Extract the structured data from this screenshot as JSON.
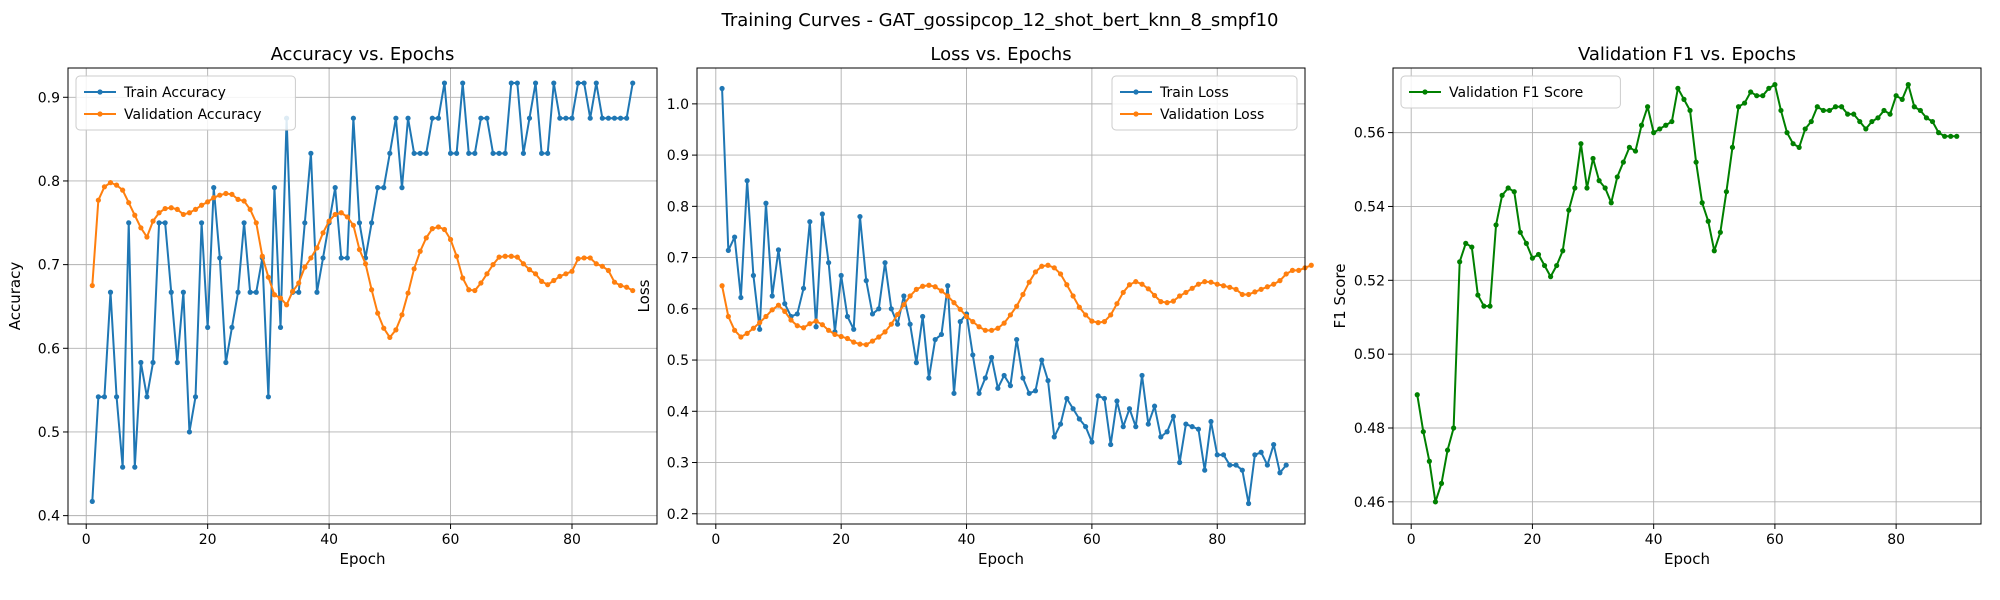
{
  "figure": {
    "suptitle": "Training Curves - GAT_gossipcop_12_shot_bert_knn_8_smpf10",
    "colors": {
      "train": "#1f77b4",
      "validation": "#ff7f0e",
      "f1": "#008000",
      "grid": "#b0b0b0"
    }
  },
  "chart_data": [
    {
      "type": "line",
      "title": "Accuracy vs. Epochs",
      "xlabel": "Epoch",
      "ylabel": "Accuracy",
      "xlim": [
        -3,
        94
      ],
      "ylim": [
        0.39,
        0.935
      ],
      "xticks": [
        0,
        20,
        40,
        60,
        80
      ],
      "yticks": [
        0.4,
        0.5,
        0.6,
        0.7,
        0.8,
        0.9
      ],
      "grid": true,
      "legend_position": "upper left",
      "series": [
        {
          "name": "Train Accuracy",
          "color": "#1f77b4",
          "values": [
            0.417,
            0.542,
            0.542,
            0.667,
            0.542,
            0.458,
            0.75,
            0.458,
            0.583,
            0.542,
            0.583,
            0.75,
            0.75,
            0.667,
            0.583,
            0.667,
            0.5,
            0.542,
            0.75,
            0.625,
            0.792,
            0.708,
            0.583,
            0.625,
            0.667,
            0.75,
            0.667,
            0.667,
            0.708,
            0.542,
            0.792,
            0.625,
            0.875,
            0.667,
            0.667,
            0.75,
            0.833,
            0.667,
            0.708,
            0.75,
            0.792,
            0.708,
            0.708,
            0.875,
            0.75,
            0.708,
            0.75,
            0.792,
            0.792,
            0.833,
            0.875,
            0.792,
            0.875,
            0.833,
            0.833,
            0.833,
            0.875,
            0.875,
            0.917,
            0.833,
            0.833,
            0.917,
            0.833,
            0.833,
            0.875,
            0.875,
            0.833,
            0.833,
            0.833,
            0.917,
            0.917,
            0.833,
            0.875,
            0.917,
            0.833,
            0.833,
            0.917,
            0.875,
            0.875,
            0.875,
            0.917,
            0.917,
            0.875,
            0.917,
            0.875,
            0.875,
            0.875,
            0.875,
            0.875,
            0.917
          ]
        },
        {
          "name": "Validation Accuracy",
          "color": "#ff7f0e",
          "values": [
            0.675,
            0.777,
            0.793,
            0.798,
            0.795,
            0.789,
            0.774,
            0.759,
            0.744,
            0.733,
            0.752,
            0.762,
            0.767,
            0.768,
            0.766,
            0.76,
            0.762,
            0.766,
            0.771,
            0.775,
            0.78,
            0.783,
            0.785,
            0.784,
            0.778,
            0.776,
            0.766,
            0.75,
            0.71,
            0.685,
            0.664,
            0.66,
            0.652,
            0.668,
            0.678,
            0.697,
            0.708,
            0.72,
            0.738,
            0.752,
            0.76,
            0.762,
            0.757,
            0.747,
            0.718,
            0.701,
            0.67,
            0.642,
            0.624,
            0.613,
            0.622,
            0.64,
            0.666,
            0.695,
            0.716,
            0.732,
            0.743,
            0.745,
            0.742,
            0.73,
            0.71,
            0.684,
            0.67,
            0.669,
            0.678,
            0.689,
            0.7,
            0.709,
            0.71,
            0.71,
            0.709,
            0.701,
            0.694,
            0.689,
            0.68,
            0.676,
            0.681,
            0.686,
            0.689,
            0.692,
            0.707,
            0.708,
            0.708,
            0.701,
            0.698,
            0.693,
            0.679,
            0.675,
            0.673,
            0.669
          ]
        }
      ]
    },
    {
      "type": "line",
      "title": "Loss vs. Epochs",
      "xlabel": "Epoch",
      "ylabel": "Loss",
      "xlim": [
        -3,
        94
      ],
      "ylim": [
        0.18,
        1.07
      ],
      "xticks": [
        0,
        20,
        40,
        60,
        80
      ],
      "yticks": [
        0.2,
        0.3,
        0.4,
        0.5,
        0.6,
        0.7,
        0.8,
        0.9,
        1.0
      ],
      "grid": true,
      "legend_position": "upper right",
      "series": [
        {
          "name": "Train Loss",
          "color": "#1f77b4",
          "values": [
            1.03,
            0.714,
            0.74,
            0.622,
            0.85,
            0.665,
            0.56,
            0.806,
            0.625,
            0.715,
            0.61,
            0.585,
            0.59,
            0.64,
            0.77,
            0.565,
            0.785,
            0.69,
            0.555,
            0.665,
            0.585,
            0.56,
            0.78,
            0.655,
            0.59,
            0.6,
            0.69,
            0.6,
            0.57,
            0.625,
            0.57,
            0.495,
            0.585,
            0.465,
            0.54,
            0.55,
            0.645,
            0.435,
            0.575,
            0.59,
            0.51,
            0.435,
            0.465,
            0.505,
            0.445,
            0.47,
            0.45,
            0.54,
            0.465,
            0.435,
            0.44,
            0.5,
            0.46,
            0.35,
            0.375,
            0.425,
            0.405,
            0.385,
            0.37,
            0.34,
            0.43,
            0.425,
            0.335,
            0.42,
            0.37,
            0.405,
            0.37,
            0.47,
            0.375,
            0.41,
            0.35,
            0.36,
            0.39,
            0.3,
            0.375,
            0.37,
            0.365,
            0.285,
            0.38,
            0.315,
            0.315,
            0.295,
            0.295,
            0.285,
            0.22,
            0.315,
            0.32,
            0.295,
            0.335,
            0.28,
            0.295
          ]
        },
        {
          "name": "Validation Loss",
          "color": "#ff7f0e",
          "values": [
            0.645,
            0.585,
            0.558,
            0.545,
            0.552,
            0.562,
            0.573,
            0.585,
            0.598,
            0.607,
            0.595,
            0.578,
            0.567,
            0.563,
            0.571,
            0.576,
            0.569,
            0.558,
            0.55,
            0.546,
            0.542,
            0.535,
            0.531,
            0.53,
            0.537,
            0.545,
            0.555,
            0.57,
            0.589,
            0.608,
            0.625,
            0.638,
            0.644,
            0.646,
            0.643,
            0.635,
            0.625,
            0.612,
            0.599,
            0.585,
            0.575,
            0.565,
            0.558,
            0.558,
            0.562,
            0.572,
            0.588,
            0.605,
            0.628,
            0.652,
            0.672,
            0.683,
            0.685,
            0.68,
            0.668,
            0.647,
            0.625,
            0.603,
            0.588,
            0.576,
            0.573,
            0.575,
            0.588,
            0.61,
            0.632,
            0.647,
            0.653,
            0.648,
            0.639,
            0.626,
            0.614,
            0.612,
            0.615,
            0.625,
            0.632,
            0.64,
            0.648,
            0.653,
            0.652,
            0.648,
            0.645,
            0.642,
            0.638,
            0.628,
            0.628,
            0.633,
            0.638,
            0.643,
            0.648,
            0.655,
            0.668,
            0.675,
            0.675,
            0.68,
            0.685
          ]
        }
      ]
    },
    {
      "type": "line",
      "title": "Validation F1 vs. Epochs",
      "xlabel": "Epoch",
      "ylabel": "F1 Score",
      "xlim": [
        -3,
        94
      ],
      "ylim": [
        0.454,
        0.5775
      ],
      "xticks": [
        0,
        20,
        40,
        60,
        80
      ],
      "yticks": [
        0.46,
        0.48,
        0.5,
        0.52,
        0.54,
        0.56
      ],
      "grid": true,
      "legend_position": "upper left",
      "series": [
        {
          "name": "Validation F1 Score",
          "color": "#008000",
          "values": [
            0.489,
            0.479,
            0.471,
            0.46,
            0.465,
            0.474,
            0.48,
            0.525,
            0.53,
            0.529,
            0.516,
            0.513,
            0.513,
            0.535,
            0.543,
            0.545,
            0.544,
            0.533,
            0.53,
            0.526,
            0.527,
            0.524,
            0.521,
            0.524,
            0.528,
            0.539,
            0.545,
            0.557,
            0.545,
            0.553,
            0.547,
            0.545,
            0.541,
            0.548,
            0.552,
            0.556,
            0.555,
            0.562,
            0.567,
            0.56,
            0.561,
            0.562,
            0.563,
            0.572,
            0.569,
            0.566,
            0.552,
            0.541,
            0.536,
            0.528,
            0.533,
            0.544,
            0.556,
            0.567,
            0.568,
            0.571,
            0.57,
            0.57,
            0.572,
            0.573,
            0.566,
            0.56,
            0.557,
            0.556,
            0.561,
            0.563,
            0.567,
            0.566,
            0.566,
            0.567,
            0.567,
            0.565,
            0.565,
            0.563,
            0.561,
            0.563,
            0.564,
            0.566,
            0.565,
            0.57,
            0.569,
            0.573,
            0.567,
            0.566,
            0.564,
            0.563,
            0.56,
            0.559,
            0.559,
            0.559
          ]
        }
      ]
    }
  ]
}
